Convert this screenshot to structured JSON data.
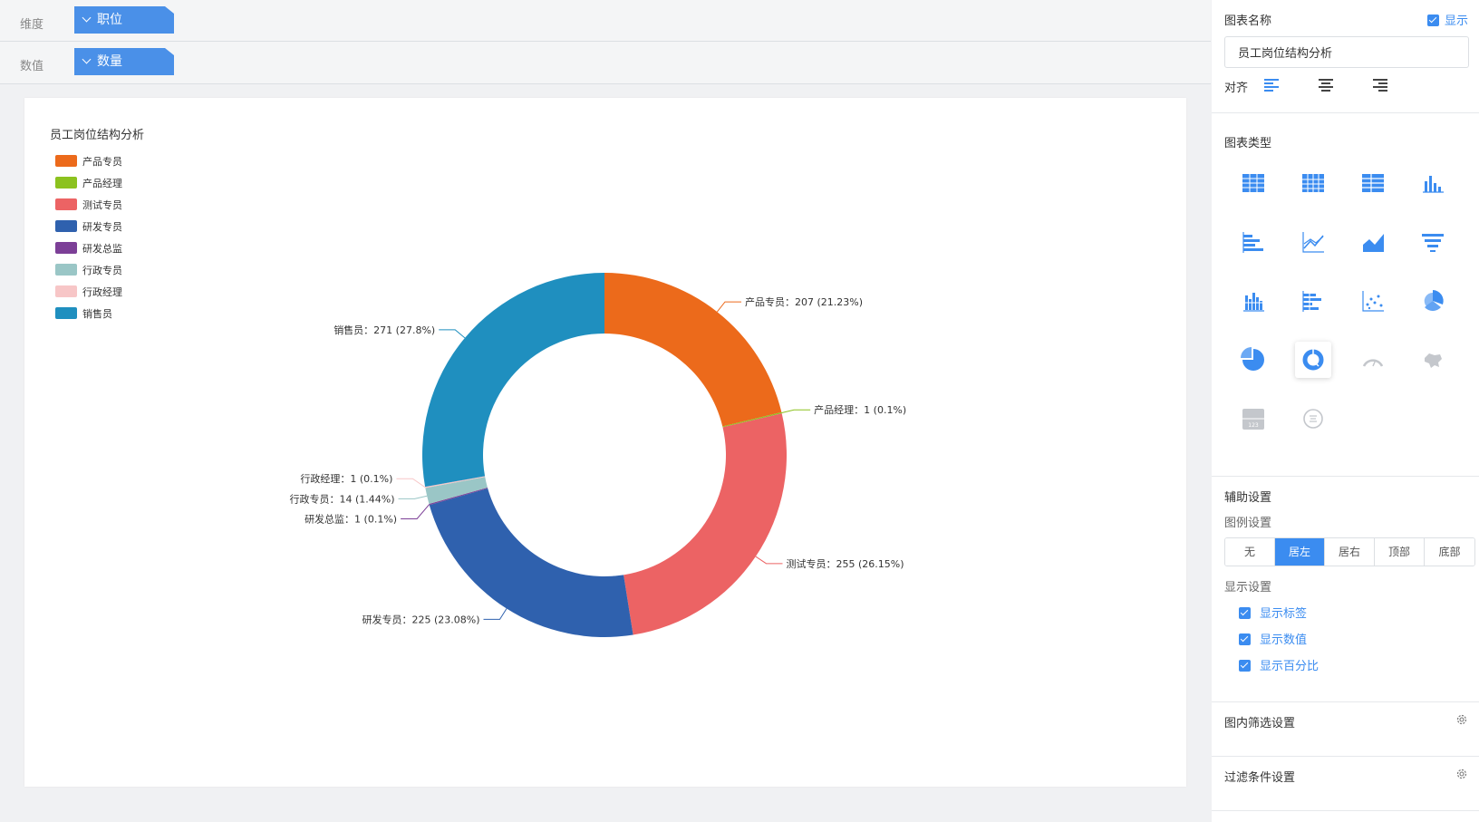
{
  "fields": {
    "dimension_label": "维度",
    "dimension_value": "职位",
    "measure_label": "数值",
    "measure_value": "数量"
  },
  "panel": {
    "chart_name_label": "图表名称",
    "show_label": "显示",
    "show_checked": true,
    "title_input_value": "员工岗位结构分析",
    "align_label": "对齐",
    "align_options": [
      "left",
      "center",
      "right"
    ],
    "align_selected": "left",
    "chart_type_label": "图表类型",
    "chart_types": [
      "table-icon",
      "cross-table-icon",
      "detail-table-icon",
      "bar-chart-icon",
      "horizontal-bar-icon",
      "line-chart-icon",
      "area-chart-icon",
      "funnel-chart-icon",
      "stacked-bar-icon",
      "stacked-horizontal-bar-icon",
      "scatter-chart-icon",
      "rose-chart-icon",
      "pie-chart-icon",
      "donut-chart-icon",
      "gauge-chart-icon",
      "map-chart-icon",
      "indicator-card-icon",
      "word-cloud-icon"
    ],
    "chart_type_selected": "donut-chart-icon",
    "aux_label": "辅助设置",
    "legend_settings_label": "图例设置",
    "legend_options": [
      "无",
      "居左",
      "居右",
      "顶部",
      "底部"
    ],
    "legend_selected": "居左",
    "display_settings_label": "显示设置",
    "display_options": [
      "显示标签",
      "显示数值",
      "显示百分比"
    ],
    "inner_filter_label": "图内筛选设置",
    "filter_label": "过滤条件设置"
  },
  "colors": {
    "accent": "#3b8cf0",
    "chip": "#4a90e8"
  },
  "chart_data": {
    "type": "pie",
    "variant": "donut",
    "title": "员工岗位结构分析",
    "legend_position": "left",
    "categories": [
      "产品专员",
      "产品经理",
      "测试专员",
      "研发专员",
      "研发总监",
      "行政专员",
      "行政经理",
      "销售员"
    ],
    "values": [
      207,
      1,
      255,
      225,
      1,
      14,
      1,
      271
    ],
    "labels": [
      "产品专员：207 (21.23%)",
      "产品经理：1 (0.1%)",
      "测试专员：255 (26.15%)",
      "研发专员：225 (23.08%)",
      "研发总监：1 (0.1%)",
      "行政专员：14 (1.44%)",
      "行政经理：1 (0.1%)",
      "销售员：271 (27.8%)"
    ],
    "colors": [
      "#ec6a1b",
      "#8cc21f",
      "#ec6364",
      "#2f61ae",
      "#7c3f97",
      "#9ac6c6",
      "#f7c6c7",
      "#1f8fbf"
    ]
  }
}
